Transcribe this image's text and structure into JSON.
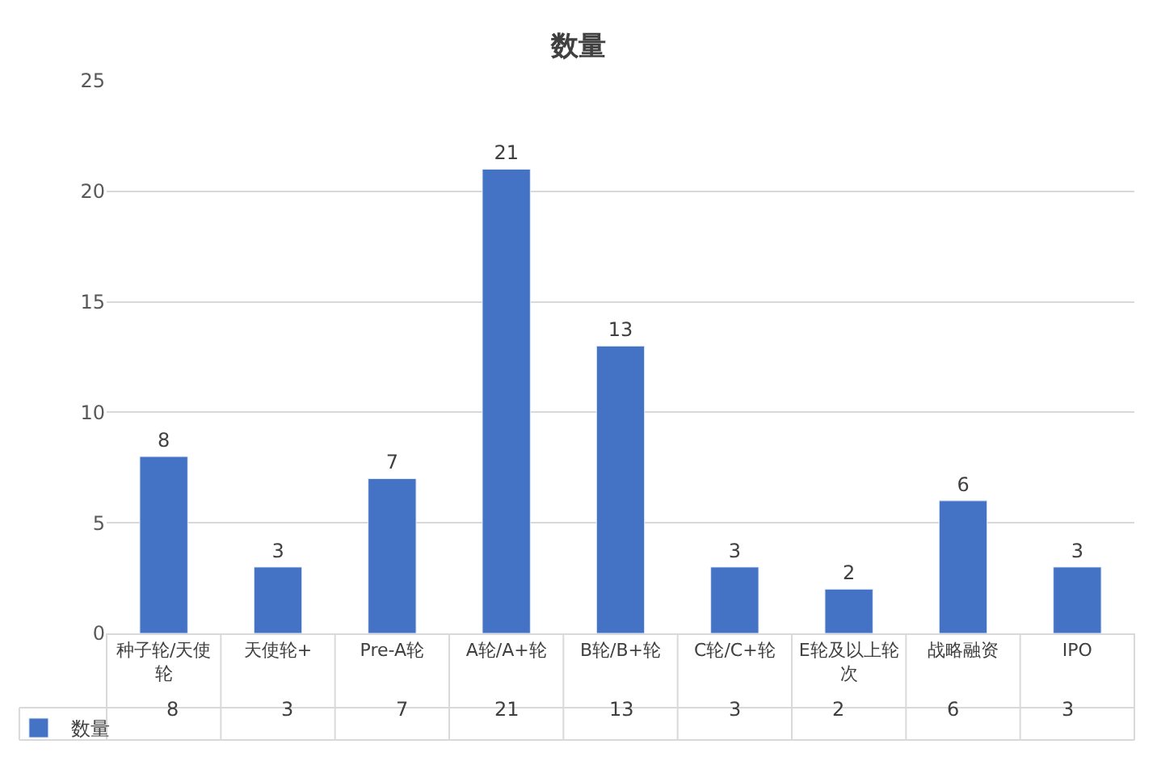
{
  "chart_data": {
    "type": "bar",
    "title": "数量",
    "categories": [
      "种子轮/天使轮",
      "天使轮+",
      "Pre-A轮",
      "A轮/A+轮",
      "B轮/B+轮",
      "C轮/C+轮",
      "E轮及以上轮次",
      "战略融资",
      "IPO"
    ],
    "series": [
      {
        "name": "数量",
        "color": "#4472c4",
        "values": [
          8,
          3,
          7,
          21,
          13,
          3,
          2,
          6,
          3
        ],
        "value_labels": [
          "8",
          "3",
          "7",
          "21",
          "13",
          "3",
          "2",
          "6",
          "3"
        ]
      }
    ],
    "ylim": [
      0,
      25
    ],
    "yticks": [
      0,
      5,
      10,
      15,
      20,
      25
    ],
    "grid": "y",
    "data_labels": true,
    "legend": "bottom left"
  }
}
